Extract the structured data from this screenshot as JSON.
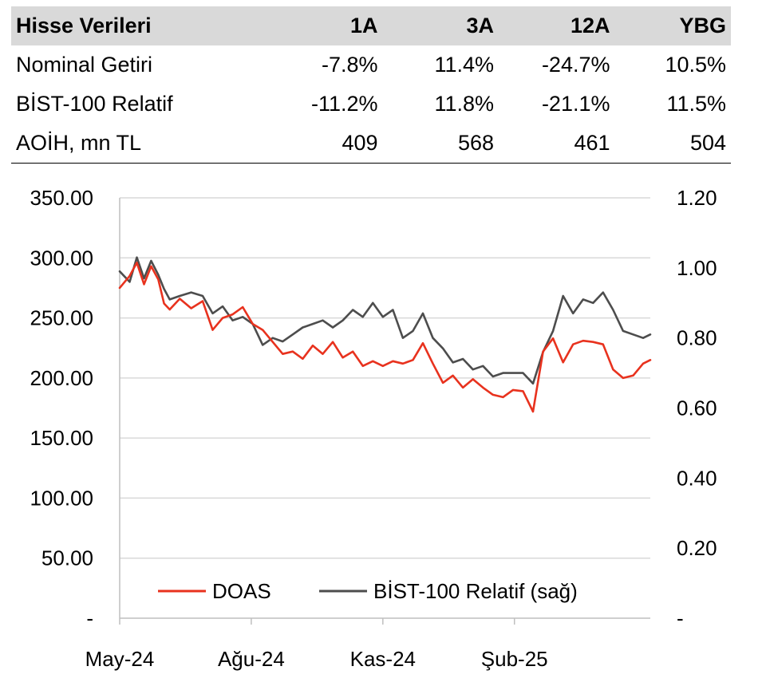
{
  "stock_table": {
    "headers": [
      "Hisse Verileri",
      "1A",
      "3A",
      "12A",
      "YBG"
    ],
    "rows": [
      [
        "Nominal Getiri",
        "-7.8%",
        "11.4%",
        "-24.7%",
        "10.5%"
      ],
      [
        "BİST-100 Relatif",
        "-11.2%",
        "11.8%",
        "-21.1%",
        "11.5%"
      ],
      [
        "AOİH, mn TL",
        "409",
        "568",
        "461",
        "504"
      ]
    ]
  },
  "chart_data": {
    "type": "line",
    "x_tick_labels": [
      "May-24",
      "Ağu-24",
      "Kas-24",
      "Şub-25"
    ],
    "x_ticks": [
      "2024-05",
      "2024-08",
      "2024-11",
      "2025-02"
    ],
    "x_range": [
      "2024-05",
      "2025-05"
    ],
    "y_left": {
      "ticks": [
        0,
        50,
        100,
        150,
        200,
        250,
        300,
        350
      ],
      "tick_labels": [
        "-",
        "50.00",
        "100.00",
        "150.00",
        "200.00",
        "250.00",
        "300.00",
        "350.00"
      ],
      "range": [
        0,
        350
      ]
    },
    "y_right": {
      "ticks": [
        0,
        0.2,
        0.4,
        0.6,
        0.8,
        1.0,
        1.2
      ],
      "tick_labels": [
        "-",
        "0.20",
        "0.40",
        "0.60",
        "0.80",
        "1.00",
        "1.20"
      ],
      "range": [
        0,
        1.2
      ]
    },
    "grid": true,
    "legend_position": "bottom-center",
    "series": [
      {
        "name": "DOAS",
        "axis": "left",
        "color": "#e8321e",
        "points": [
          [
            "2024-05-01",
            275
          ],
          [
            "2024-05-08",
            285
          ],
          [
            "2024-05-13",
            296
          ],
          [
            "2024-05-18",
            278
          ],
          [
            "2024-05-23",
            293
          ],
          [
            "2024-05-28",
            282
          ],
          [
            "2024-06-01",
            262
          ],
          [
            "2024-06-05",
            257
          ],
          [
            "2024-06-12",
            266
          ],
          [
            "2024-06-20",
            258
          ],
          [
            "2024-06-28",
            264
          ],
          [
            "2024-07-05",
            240
          ],
          [
            "2024-07-12",
            250
          ],
          [
            "2024-07-19",
            253
          ],
          [
            "2024-07-26",
            259
          ],
          [
            "2024-08-02",
            245
          ],
          [
            "2024-08-09",
            240
          ],
          [
            "2024-08-16",
            230
          ],
          [
            "2024-08-23",
            220
          ],
          [
            "2024-08-30",
            222
          ],
          [
            "2024-09-06",
            216
          ],
          [
            "2024-09-13",
            227
          ],
          [
            "2024-09-20",
            220
          ],
          [
            "2024-09-27",
            230
          ],
          [
            "2024-10-04",
            217
          ],
          [
            "2024-10-11",
            222
          ],
          [
            "2024-10-18",
            210
          ],
          [
            "2024-10-25",
            214
          ],
          [
            "2024-11-01",
            210
          ],
          [
            "2024-11-08",
            214
          ],
          [
            "2024-11-15",
            212
          ],
          [
            "2024-11-22",
            215
          ],
          [
            "2024-11-29",
            229
          ],
          [
            "2024-12-06",
            212
          ],
          [
            "2024-12-13",
            196
          ],
          [
            "2024-12-20",
            202
          ],
          [
            "2024-12-27",
            192
          ],
          [
            "2025-01-03",
            199
          ],
          [
            "2025-01-10",
            192
          ],
          [
            "2025-01-17",
            186
          ],
          [
            "2025-01-24",
            184
          ],
          [
            "2025-01-31",
            190
          ],
          [
            "2025-02-07",
            189
          ],
          [
            "2025-02-14",
            172
          ],
          [
            "2025-02-21",
            222
          ],
          [
            "2025-02-28",
            233
          ],
          [
            "2025-03-07",
            213
          ],
          [
            "2025-03-14",
            228
          ],
          [
            "2025-03-21",
            231
          ],
          [
            "2025-03-28",
            230
          ],
          [
            "2025-04-04",
            228
          ],
          [
            "2025-04-11",
            207
          ],
          [
            "2025-04-18",
            200
          ],
          [
            "2025-04-25",
            202
          ],
          [
            "2025-05-02",
            212
          ],
          [
            "2025-05-07",
            215
          ]
        ]
      },
      {
        "name": "BİST-100 Relatif (sağ)",
        "axis": "right",
        "color": "#4d4d4d",
        "points": [
          [
            "2024-05-01",
            0.99
          ],
          [
            "2024-05-08",
            0.96
          ],
          [
            "2024-05-13",
            1.03
          ],
          [
            "2024-05-18",
            0.97
          ],
          [
            "2024-05-23",
            1.02
          ],
          [
            "2024-05-28",
            0.98
          ],
          [
            "2024-06-01",
            0.94
          ],
          [
            "2024-06-05",
            0.91
          ],
          [
            "2024-06-12",
            0.92
          ],
          [
            "2024-06-20",
            0.93
          ],
          [
            "2024-06-28",
            0.92
          ],
          [
            "2024-07-05",
            0.87
          ],
          [
            "2024-07-12",
            0.89
          ],
          [
            "2024-07-19",
            0.85
          ],
          [
            "2024-07-26",
            0.86
          ],
          [
            "2024-08-02",
            0.84
          ],
          [
            "2024-08-09",
            0.78
          ],
          [
            "2024-08-16",
            0.8
          ],
          [
            "2024-08-23",
            0.79
          ],
          [
            "2024-08-30",
            0.81
          ],
          [
            "2024-09-06",
            0.83
          ],
          [
            "2024-09-13",
            0.84
          ],
          [
            "2024-09-20",
            0.85
          ],
          [
            "2024-09-27",
            0.83
          ],
          [
            "2024-10-04",
            0.85
          ],
          [
            "2024-10-11",
            0.88
          ],
          [
            "2024-10-18",
            0.86
          ],
          [
            "2024-10-25",
            0.9
          ],
          [
            "2024-11-01",
            0.86
          ],
          [
            "2024-11-08",
            0.88
          ],
          [
            "2024-11-15",
            0.8
          ],
          [
            "2024-11-22",
            0.82
          ],
          [
            "2024-11-29",
            0.87
          ],
          [
            "2024-12-06",
            0.8
          ],
          [
            "2024-12-13",
            0.77
          ],
          [
            "2024-12-20",
            0.73
          ],
          [
            "2024-12-27",
            0.74
          ],
          [
            "2025-01-03",
            0.71
          ],
          [
            "2025-01-10",
            0.72
          ],
          [
            "2025-01-17",
            0.69
          ],
          [
            "2025-01-24",
            0.7
          ],
          [
            "2025-01-31",
            0.7
          ],
          [
            "2025-02-07",
            0.7
          ],
          [
            "2025-02-14",
            0.67
          ],
          [
            "2025-02-21",
            0.76
          ],
          [
            "2025-02-28",
            0.82
          ],
          [
            "2025-03-07",
            0.92
          ],
          [
            "2025-03-14",
            0.87
          ],
          [
            "2025-03-21",
            0.91
          ],
          [
            "2025-03-28",
            0.9
          ],
          [
            "2025-04-04",
            0.93
          ],
          [
            "2025-04-11",
            0.88
          ],
          [
            "2025-04-18",
            0.82
          ],
          [
            "2025-04-25",
            0.81
          ],
          [
            "2025-05-02",
            0.8
          ],
          [
            "2025-05-07",
            0.81
          ]
        ]
      }
    ]
  }
}
